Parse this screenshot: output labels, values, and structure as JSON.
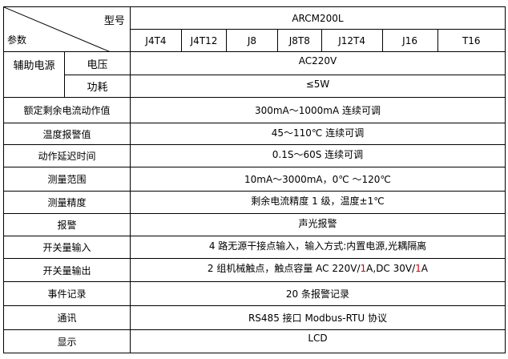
{
  "header": {
    "model_label": "型号",
    "param_label": "参数",
    "model": "ARCM200L",
    "variants": [
      "J4T4",
      "J4T12",
      "J8",
      "J8T8",
      "J12T4",
      "J16",
      "T16"
    ]
  },
  "power": {
    "group": "辅助电源",
    "voltage_label": "电压",
    "voltage": "AC220V",
    "consumption_label": "功耗",
    "consumption": "≤5W"
  },
  "rows": [
    {
      "label": "额定剩余电流动作值",
      "value": "300mA～1000mA 连续可调"
    },
    {
      "label": "温度报警值",
      "value": "45～110℃  连续可调"
    },
    {
      "label": "动作延迟时间",
      "value": "0.1S～60S 连续可调"
    },
    {
      "label": "测量范围",
      "value": "10mA～3000mA，0℃ ～120℃"
    },
    {
      "label": "测量精度",
      "value": "剩余电流精度 1 级，温度±1℃"
    },
    {
      "label": "报警",
      "value": "声光报警"
    },
    {
      "label": "开关量输入",
      "value": "4 路无源干接点输入，输入方式:内置电源,光耦隔离"
    },
    {
      "label": "开关量输出",
      "value_parts": [
        "2 组机械触点，触点容量 AC 220V/",
        "1",
        "A,DC 30V/",
        "1",
        "A"
      ]
    },
    {
      "label": "事件记录",
      "value": "20 条报警记录"
    },
    {
      "label": "通讯",
      "value": "RS485 接口  Modbus-RTU 协议"
    },
    {
      "label": "显示",
      "value": "LCD"
    }
  ],
  "colors": {
    "highlight": "#e00000"
  }
}
